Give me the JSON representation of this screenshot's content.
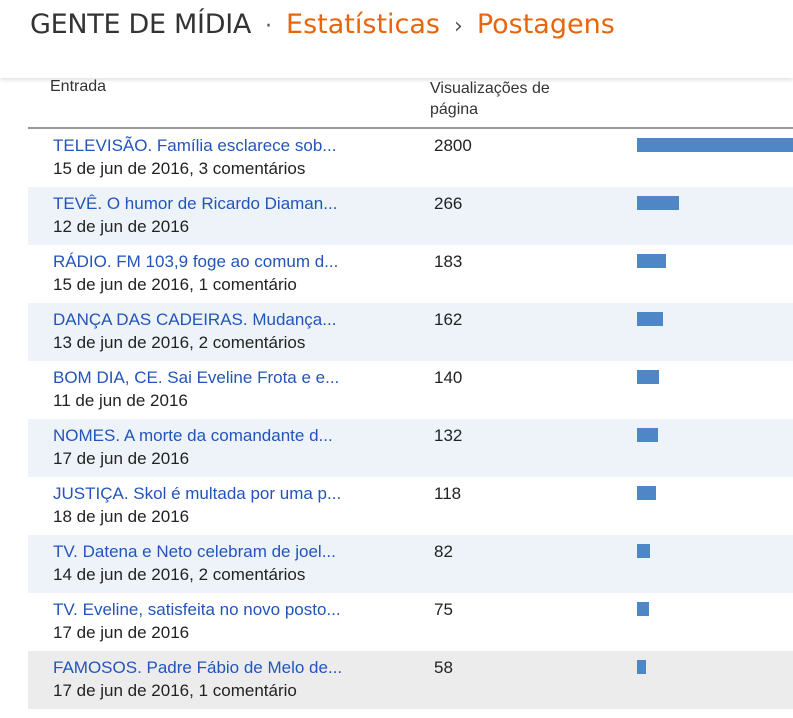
{
  "header": {
    "blog_name": "GENTE DE MÍDIA",
    "dot": "·",
    "section": "Estatísticas",
    "arrow": "›",
    "page": "Postagens"
  },
  "table": {
    "columns": {
      "entry": "Entrada",
      "views": "Visualizações de página"
    },
    "max_views": 2800,
    "rows": [
      {
        "title": "TELEVISÃO. Família esclarece sob...",
        "meta": "15 de jun de 2016, 3 comentários",
        "views": 2800
      },
      {
        "title": "TEVÊ. O humor de Ricardo Diaman...",
        "meta": "12 de jun de 2016",
        "views": 266
      },
      {
        "title": "RÁDIO. FM 103,9 foge ao comum d...",
        "meta": "15 de jun de 2016, 1 comentário",
        "views": 183
      },
      {
        "title": "DANÇA DAS CADEIRAS. Mudança...",
        "meta": "13 de jun de 2016, 2 comentários",
        "views": 162
      },
      {
        "title": "BOM DIA, CE. Sai Eveline Frota e e...",
        "meta": "11 de jun de 2016",
        "views": 140
      },
      {
        "title": "NOMES. A morte da comandante d...",
        "meta": "17 de jun de 2016",
        "views": 132
      },
      {
        "title": "JUSTIÇA. Skol é multada por uma p...",
        "meta": "18 de jun de 2016",
        "views": 118
      },
      {
        "title": "TV. Datena e Neto celebram de joel...",
        "meta": "14 de jun de 2016, 2 comentários",
        "views": 82
      },
      {
        "title": "TV. Eveline, satisfeita no novo posto...",
        "meta": "17 de jun de 2016",
        "views": 75
      },
      {
        "title": "FAMOSOS. Padre Fábio de Melo de...",
        "meta": "17 de jun de 2016, 1 comentário",
        "views": 58
      }
    ]
  },
  "colors": {
    "accent": "#e8650a",
    "link": "#2255bb",
    "bar": "#4f86c6"
  }
}
